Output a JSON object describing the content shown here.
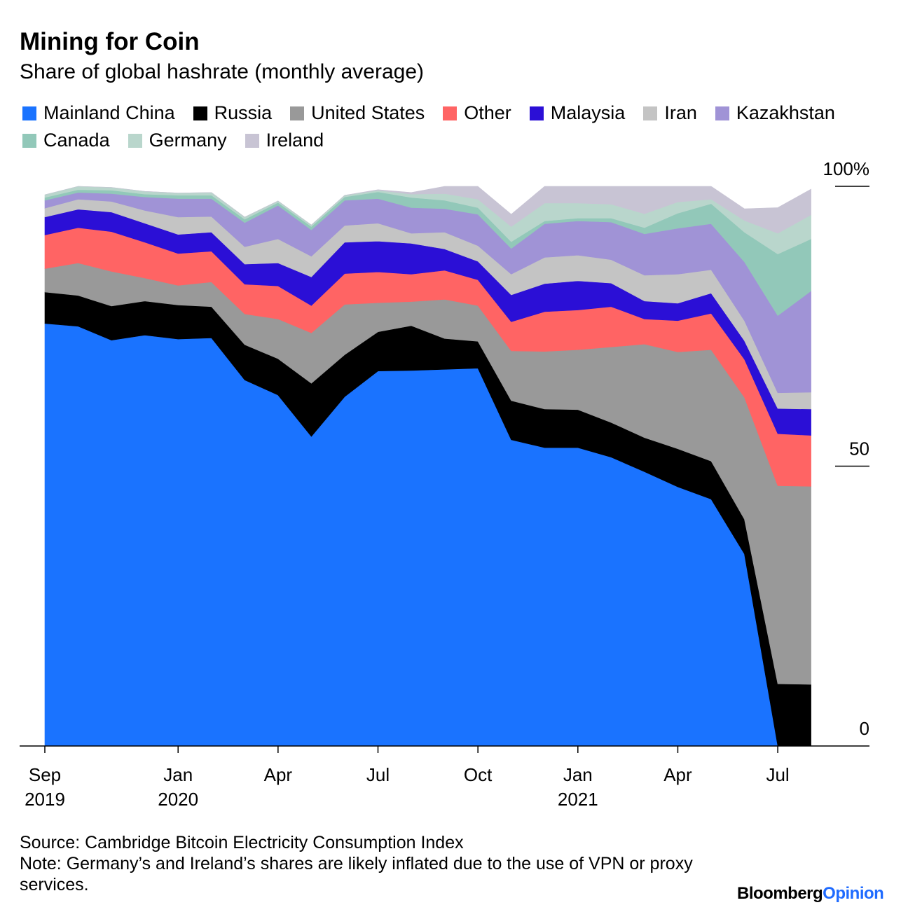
{
  "header": {
    "title": "Mining for Coin",
    "subtitle": "Share of global hashrate (monthly average)"
  },
  "footer": {
    "source": "Source: Cambridge Bitcoin Electricity Consumption Index",
    "note": "Note: Germany’s and Ireland’s shares are likely inflated due to the use of VPN or proxy services.",
    "logo_main": "Bloomberg",
    "logo_sub": "Opinion"
  },
  "chart_data": {
    "type": "area",
    "stacked": true,
    "title": "Mining for Coin",
    "subtitle": "Share of global hashrate (monthly average)",
    "x": [
      "2019-09",
      "2019-10",
      "2019-11",
      "2019-12",
      "2020-01",
      "2020-02",
      "2020-03",
      "2020-04",
      "2020-05",
      "2020-06",
      "2020-07",
      "2020-08",
      "2020-09",
      "2020-10",
      "2020-11",
      "2020-12",
      "2021-01",
      "2021-02",
      "2021-03",
      "2021-04",
      "2021-05",
      "2021-06",
      "2021-07",
      "2021-08"
    ],
    "x_ticks": [
      {
        "x": "2019-09",
        "line1": "Sep",
        "line2": "2019"
      },
      {
        "x": "2020-01",
        "line1": "Jan",
        "line2": "2020"
      },
      {
        "x": "2020-04",
        "line1": "Apr",
        "line2": ""
      },
      {
        "x": "2020-07",
        "line1": "Jul",
        "line2": ""
      },
      {
        "x": "2020-10",
        "line1": "Oct",
        "line2": ""
      },
      {
        "x": "2021-01",
        "line1": "Jan",
        "line2": "2021"
      },
      {
        "x": "2021-04",
        "line1": "Apr",
        "line2": ""
      },
      {
        "x": "2021-07",
        "line1": "Jul",
        "line2": ""
      }
    ],
    "y_ticks": [
      {
        "value": 0,
        "label": "0"
      },
      {
        "value": 50,
        "label": "50"
      },
      {
        "value": 100,
        "label": "100%"
      }
    ],
    "ylim": [
      0,
      100
    ],
    "legend_position": "top",
    "series": [
      {
        "name": "Mainland China",
        "color": "#1a73ff",
        "values": [
          75.5,
          75.0,
          72.5,
          73.4,
          72.7,
          72.9,
          65.4,
          62.7,
          55.3,
          62.4,
          67.0,
          67.1,
          67.3,
          67.5,
          54.7,
          53.3,
          53.3,
          51.6,
          49.0,
          46.3,
          44.1,
          34.3,
          0.0,
          0.0
        ]
      },
      {
        "name": "Russia",
        "color": "#000000",
        "values": [
          5.6,
          5.5,
          6.1,
          6.1,
          6.1,
          5.6,
          6.3,
          6.5,
          9.5,
          7.5,
          7.0,
          8.0,
          5.5,
          4.8,
          7.0,
          6.9,
          6.8,
          6.2,
          6.1,
          6.8,
          6.8,
          6.2,
          11.1,
          11.0
        ]
      },
      {
        "name": "United States",
        "color": "#999999",
        "values": [
          4.2,
          5.8,
          6.2,
          4.1,
          3.5,
          4.4,
          5.5,
          7.1,
          9.0,
          9.0,
          5.2,
          4.3,
          7.0,
          6.4,
          8.9,
          10.3,
          10.7,
          13.5,
          16.7,
          17.3,
          19.9,
          21.8,
          35.4,
          35.4
        ]
      },
      {
        "name": "Other",
        "color": "#ff6464",
        "values": [
          6.0,
          6.3,
          7.1,
          6.4,
          5.7,
          5.5,
          5.3,
          5.9,
          4.9,
          5.5,
          5.5,
          4.9,
          5.2,
          4.6,
          5.2,
          7.1,
          7.1,
          7.2,
          4.5,
          5.6,
          6.5,
          6.8,
          9.3,
          9.1
        ]
      },
      {
        "name": "Malaysia",
        "color": "#2b0fd6",
        "values": [
          3.2,
          3.3,
          3.5,
          3.4,
          3.4,
          3.4,
          3.6,
          4.1,
          5.1,
          5.6,
          5.5,
          5.5,
          3.8,
          3.3,
          4.8,
          5.0,
          5.2,
          4.2,
          3.2,
          3.1,
          3.6,
          3.3,
          4.5,
          4.7
        ]
      },
      {
        "name": "Iran",
        "color": "#c4c4c4",
        "values": [
          1.6,
          1.8,
          1.9,
          2.3,
          3.1,
          2.8,
          3.1,
          4.3,
          3.7,
          3.0,
          3.2,
          1.8,
          3.0,
          2.8,
          3.7,
          4.7,
          4.6,
          4.2,
          4.6,
          5.2,
          4.2,
          3.6,
          2.8,
          3.0
        ]
      },
      {
        "name": "Kazakhstan",
        "color": "#a093d6",
        "values": [
          1.4,
          1.2,
          1.4,
          2.4,
          3.3,
          3.2,
          4.3,
          6.0,
          4.7,
          4.5,
          4.4,
          4.6,
          4.2,
          5.6,
          4.6,
          6.0,
          6.1,
          6.7,
          7.4,
          8.2,
          8.2,
          10.5,
          13.8,
          18.1
        ]
      },
      {
        "name": "Canada",
        "color": "#92c8b9",
        "values": [
          0.5,
          0.5,
          0.6,
          0.5,
          0.6,
          0.6,
          0.6,
          0.5,
          0.6,
          0.6,
          1.2,
          1.8,
          1.5,
          1.2,
          1.2,
          0.5,
          0.5,
          0.7,
          1.1,
          2.7,
          3.6,
          5.3,
          11.0,
          9.3
        ]
      },
      {
        "name": "Germany",
        "color": "#b9d6cc",
        "values": [
          0.5,
          0.6,
          0.5,
          0.5,
          0.4,
          0.5,
          0.4,
          0.3,
          0.3,
          0.3,
          0.3,
          0.6,
          1.2,
          1.5,
          2.7,
          3.2,
          2.7,
          2.5,
          2.5,
          2.0,
          0.8,
          2.1,
          3.7,
          4.3
        ]
      },
      {
        "name": "Ireland",
        "color": "#c8c4d4",
        "values": [
          0.0,
          0.0,
          0.0,
          0.0,
          0.0,
          0.0,
          0.0,
          0.0,
          0.0,
          0.0,
          0.1,
          0.3,
          1.3,
          2.3,
          2.2,
          3.0,
          3.0,
          3.2,
          4.9,
          2.8,
          2.3,
          2.1,
          4.6,
          4.6
        ]
      }
    ]
  }
}
